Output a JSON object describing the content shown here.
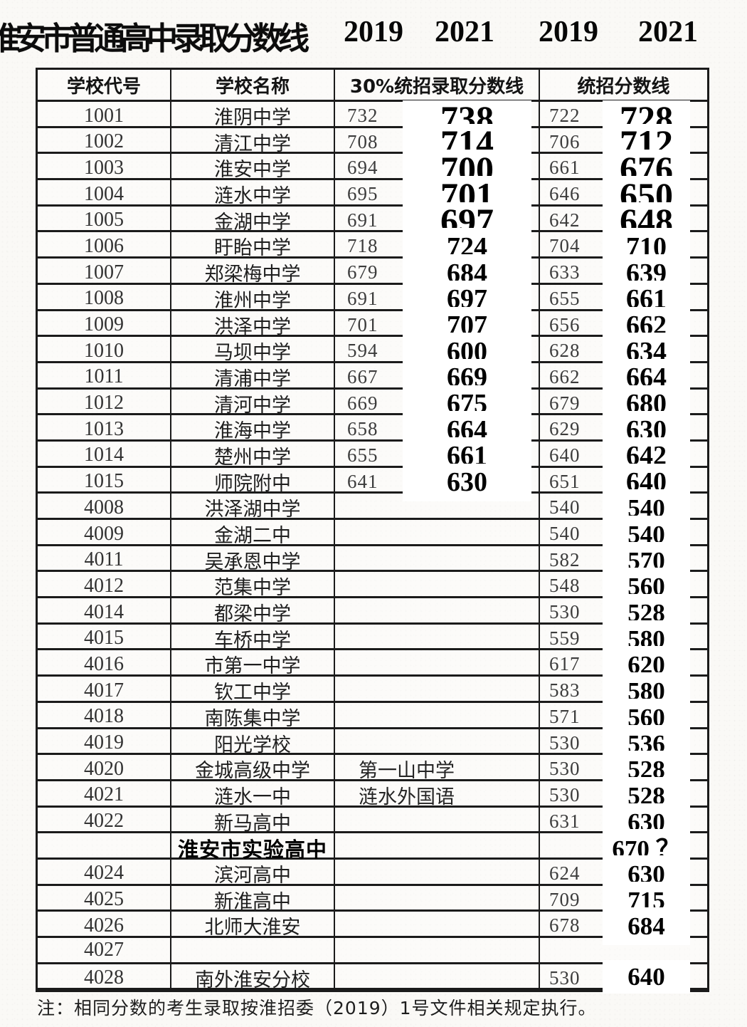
{
  "title": {
    "main": "淮安市普通高中录取分数线",
    "years": [
      "2019",
      "2021",
      "2019",
      "2021"
    ]
  },
  "colors": {
    "ink": "#1b1b1b",
    "paper": "#faf9f6",
    "patch": "#ffffff"
  },
  "table": {
    "headers": [
      "学校代号",
      "学校名称",
      "30%统招录取分数线",
      "统招分数线"
    ],
    "rows": [
      {
        "code": "1001",
        "name": "淮阴中学",
        "a2019": "732",
        "a2021": "738",
        "b2019": "722",
        "b2021": "728"
      },
      {
        "code": "1002",
        "name": "清江中学",
        "a2019": "708",
        "a2021": "714",
        "b2019": "706",
        "b2021": "712"
      },
      {
        "code": "1003",
        "name": "淮安中学",
        "a2019": "694",
        "a2021": "700",
        "b2019": "661",
        "b2021": "676"
      },
      {
        "code": "1004",
        "name": "涟水中学",
        "a2019": "695",
        "a2021": "701",
        "b2019": "646",
        "b2021": "650"
      },
      {
        "code": "1005",
        "name": "金湖中学",
        "a2019": "691",
        "a2021": "697",
        "b2019": "642",
        "b2021": "648"
      },
      {
        "code": "1006",
        "name": "盱眙中学",
        "a2019": "718",
        "a2021": "724",
        "b2019": "704",
        "b2021": "710"
      },
      {
        "code": "1007",
        "name": "郑梁梅中学",
        "a2019": "679",
        "a2021": "684",
        "b2019": "633",
        "b2021": "639"
      },
      {
        "code": "1008",
        "name": "淮州中学",
        "a2019": "691",
        "a2021": "697",
        "b2019": "655",
        "b2021": "661"
      },
      {
        "code": "1009",
        "name": "洪泽中学",
        "a2019": "701",
        "a2021": "707",
        "b2019": "656",
        "b2021": "662"
      },
      {
        "code": "1010",
        "name": "马坝中学",
        "a2019": "594",
        "a2021": "600",
        "b2019": "628",
        "b2021": "634"
      },
      {
        "code": "1011",
        "name": "清浦中学",
        "a2019": "667",
        "a2021": "669",
        "b2019": "662",
        "b2021": "664"
      },
      {
        "code": "1012",
        "name": "清河中学",
        "a2019": "669",
        "a2021": "675",
        "b2019": "679",
        "b2021": "680"
      },
      {
        "code": "1013",
        "name": "淮海中学",
        "a2019": "658",
        "a2021": "664",
        "b2019": "629",
        "b2021": "630"
      },
      {
        "code": "1014",
        "name": "楚州中学",
        "a2019": "655",
        "a2021": "661",
        "b2019": "640",
        "b2021": "642"
      },
      {
        "code": "1015",
        "name": "师院附中",
        "a2019": "641",
        "a2021": "630",
        "b2019": "651",
        "b2021": "640"
      },
      {
        "code": "4008",
        "name": "洪泽湖中学",
        "b2019": "540",
        "b2021": "540"
      },
      {
        "code": "4009",
        "name": "金湖二中",
        "b2019": "540",
        "b2021": "540"
      },
      {
        "code": "4011",
        "name": "吴承恩中学",
        "b2019": "582",
        "b2021": "570"
      },
      {
        "code": "4012",
        "name": "范集中学",
        "b2019": "548",
        "b2021": "560"
      },
      {
        "code": "4014",
        "name": "都梁中学",
        "b2019": "530",
        "b2021": "528"
      },
      {
        "code": "4015",
        "name": "车桥中学",
        "b2019": "559",
        "b2021": "580"
      },
      {
        "code": "4016",
        "name": "市第一中学",
        "b2019": "617",
        "b2021": "620"
      },
      {
        "code": "4017",
        "name": "钦工中学",
        "b2019": "583",
        "b2021": "580"
      },
      {
        "code": "4018",
        "name": "南陈集中学",
        "b2019": "571",
        "b2021": "560"
      },
      {
        "code": "4019",
        "name": "阳光学校",
        "b2019": "530",
        "b2021": "536"
      },
      {
        "code": "4020",
        "name": "金城高级中学",
        "extra": "第一山中学",
        "b2019": "530",
        "b2021": "528"
      },
      {
        "code": "4021",
        "name": "涟水一中",
        "extra": "涟水外国语",
        "b2019": "530",
        "b2021": "528"
      },
      {
        "code": "4022",
        "name": "新马高中",
        "b2019": "631",
        "b2021": "630"
      },
      {
        "code": "",
        "name": "淮安市实验高中",
        "name_bold": true,
        "b2021": "670 ？"
      },
      {
        "code": "4024",
        "name": "滨河高中",
        "b2019": "624",
        "b2021": "630"
      },
      {
        "code": "4025",
        "name": "新淮高中",
        "b2019": "709",
        "b2021": "715"
      },
      {
        "code": "4026",
        "name": "北师大淮安",
        "b2019": "678",
        "b2021": "684"
      },
      {
        "code": "4027",
        "name": ""
      },
      {
        "code": "4028",
        "name": "南外淮安分校",
        "b2019": "530",
        "b2021": "640"
      }
    ],
    "note": "注：相同分数的考生录取按淮招委（2019）1号文件相关规定执行。"
  }
}
